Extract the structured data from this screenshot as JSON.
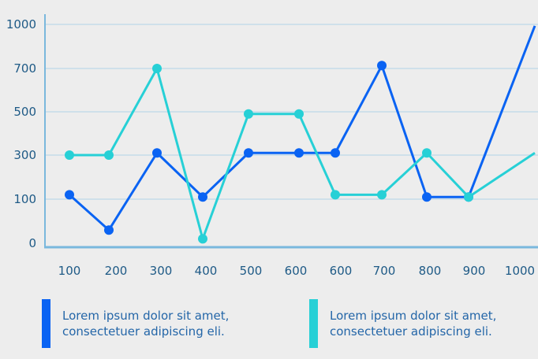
{
  "chart_data": {
    "type": "line",
    "x": [
      "100",
      "200",
      "300",
      "400",
      "500",
      "600",
      "600",
      "700",
      "800",
      "900",
      "1000"
    ],
    "y_ticks": [
      "0",
      "100",
      "300",
      "500",
      "700",
      "1000"
    ],
    "series": [
      {
        "color": "#0a63f3",
        "values": [
          120,
          30,
          310,
          110,
          310,
          310,
          310,
          720,
          110,
          110,
          990
        ]
      },
      {
        "color": "#27d0d6",
        "values": [
          300,
          300,
          700,
          10,
          490,
          490,
          120,
          120,
          310,
          110,
          310
        ]
      }
    ],
    "grid": true,
    "axis_color": "#7ab8dd"
  },
  "legend": [
    {
      "text": "Lorem ipsum dolor sit amet,\nconsectetuer adipiscing eli.",
      "color": "#0a63f3"
    },
    {
      "text": "Lorem ipsum dolor sit amet,\nconsectetuer adipiscing eli.",
      "color": "#27d0d6"
    }
  ]
}
